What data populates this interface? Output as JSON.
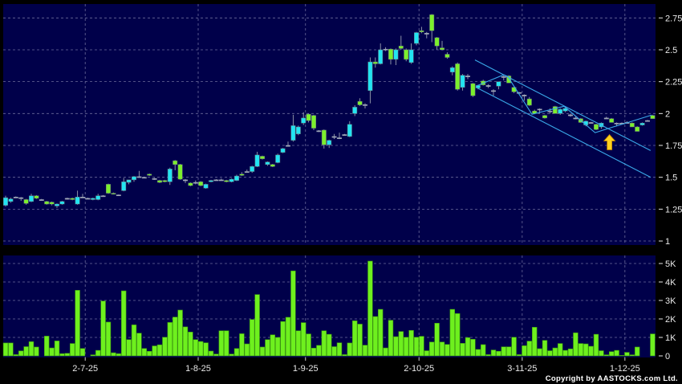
{
  "chart_data": [
    {
      "type": "candlestick",
      "panel": "price",
      "ylim": [
        1,
        2.78
      ],
      "y_ticks": [
        "1",
        "1.25",
        "1.5",
        "1.75",
        "2",
        "2.25",
        "2.5",
        "2.75"
      ],
      "y_tick_values": [
        1,
        1.25,
        1.5,
        1.75,
        2,
        2.25,
        2.5,
        2.75
      ],
      "grid": true,
      "colors": {
        "up": "#22e4f2",
        "down": "#7cf02c",
        "flat": "#a0a8b8",
        "background": "#00004a",
        "trendline": "#3aa8e8",
        "arrow": "#ffd21e"
      },
      "candles_ohlc": [
        [
          1.28,
          1.355,
          1.27,
          1.34
        ],
        [
          1.31,
          1.34,
          1.3,
          1.33
        ],
        [
          1.345,
          1.35,
          1.34,
          1.345
        ],
        [
          1.34,
          1.345,
          1.315,
          1.34
        ],
        [
          1.325,
          1.33,
          1.285,
          1.295
        ],
        [
          1.31,
          1.37,
          1.305,
          1.355
        ],
        [
          1.355,
          1.36,
          1.33,
          1.335
        ],
        [
          1.325,
          1.33,
          1.32,
          1.325
        ],
        [
          1.31,
          1.315,
          1.285,
          1.29
        ],
        [
          1.305,
          1.31,
          1.28,
          1.29
        ],
        [
          1.275,
          1.295,
          1.26,
          1.29
        ],
        [
          1.29,
          1.315,
          1.285,
          1.31
        ],
        [
          1.335,
          1.34,
          1.325,
          1.335
        ],
        [
          1.335,
          1.34,
          1.32,
          1.325
        ],
        [
          1.29,
          1.395,
          1.285,
          1.345
        ],
        [
          1.345,
          1.37,
          1.34,
          1.345
        ],
        [
          1.335,
          1.34,
          1.33,
          1.335
        ],
        [
          1.325,
          1.34,
          1.32,
          1.335
        ],
        [
          1.325,
          1.37,
          1.32,
          1.355
        ],
        [
          1.355,
          1.36,
          1.35,
          1.355
        ],
        [
          1.445,
          1.45,
          1.37,
          1.375
        ],
        [
          1.375,
          1.38,
          1.365,
          1.368
        ],
        [
          1.362,
          1.365,
          1.36,
          1.362
        ],
        [
          1.395,
          1.495,
          1.39,
          1.465
        ],
        [
          1.46,
          1.48,
          1.445,
          1.48
        ],
        [
          1.48,
          1.51,
          1.465,
          1.505
        ],
        [
          1.505,
          1.55,
          1.5,
          1.505
        ],
        [
          1.5,
          1.505,
          1.495,
          1.5
        ],
        [
          1.525,
          1.53,
          1.51,
          1.515
        ],
        [
          1.49,
          1.495,
          1.48,
          1.49
        ],
        [
          1.475,
          1.48,
          1.455,
          1.46
        ],
        [
          1.475,
          1.48,
          1.46,
          1.465
        ],
        [
          1.465,
          1.575,
          1.44,
          1.565
        ],
        [
          1.63,
          1.635,
          1.555,
          1.6
        ],
        [
          1.6,
          1.605,
          1.48,
          1.485
        ],
        [
          1.48,
          1.485,
          1.455,
          1.48
        ],
        [
          1.455,
          1.46,
          1.43,
          1.435
        ],
        [
          1.46,
          1.475,
          1.445,
          1.46
        ],
        [
          1.465,
          1.47,
          1.43,
          1.435
        ],
        [
          1.415,
          1.45,
          1.41,
          1.445
        ],
        [
          1.465,
          1.48,
          1.46,
          1.475
        ],
        [
          1.48,
          1.485,
          1.475,
          1.48
        ],
        [
          1.48,
          1.49,
          1.475,
          1.48
        ],
        [
          1.475,
          1.48,
          1.46,
          1.465
        ],
        [
          1.465,
          1.49,
          1.46,
          1.485
        ],
        [
          1.475,
          1.52,
          1.47,
          1.51
        ],
        [
          1.525,
          1.54,
          1.51,
          1.515
        ],
        [
          1.545,
          1.56,
          1.54,
          1.545
        ],
        [
          1.545,
          1.59,
          1.535,
          1.585
        ],
        [
          1.585,
          1.7,
          1.58,
          1.675
        ],
        [
          1.665,
          1.67,
          1.64,
          1.645
        ],
        [
          1.6,
          1.625,
          1.59,
          1.62
        ],
        [
          1.6,
          1.605,
          1.58,
          1.585
        ],
        [
          1.615,
          1.685,
          1.61,
          1.675
        ],
        [
          1.695,
          1.73,
          1.69,
          1.725
        ],
        [
          1.75,
          1.78,
          1.74,
          1.75
        ],
        [
          1.79,
          1.99,
          1.78,
          1.905
        ],
        [
          1.84,
          1.905,
          1.83,
          1.895
        ],
        [
          1.925,
          2.01,
          1.91,
          1.965
        ],
        [
          1.995,
          2.0,
          1.93,
          1.945
        ],
        [
          1.985,
          1.99,
          1.87,
          1.885
        ],
        [
          1.865,
          1.87,
          1.855,
          1.865
        ],
        [
          1.87,
          1.875,
          1.725,
          1.755
        ],
        [
          1.755,
          1.795,
          1.73,
          1.79
        ],
        [
          1.82,
          1.84,
          1.8,
          1.82
        ],
        [
          1.81,
          1.85,
          1.8,
          1.81
        ],
        [
          1.835,
          1.84,
          1.83,
          1.835
        ],
        [
          1.82,
          1.94,
          1.815,
          1.915
        ],
        [
          2.0,
          2.065,
          1.98,
          2.05
        ],
        [
          2.095,
          2.12,
          2.06,
          2.068
        ],
        [
          2.07,
          2.08,
          2.04,
          2.07
        ],
        [
          2.18,
          2.44,
          2.08,
          2.405
        ],
        [
          2.405,
          2.44,
          2.36,
          2.39
        ],
        [
          2.39,
          2.55,
          2.385,
          2.5
        ],
        [
          2.505,
          2.52,
          2.49,
          2.505
        ],
        [
          2.505,
          2.51,
          2.385,
          2.425
        ],
        [
          2.425,
          2.51,
          2.38,
          2.5
        ],
        [
          2.53,
          2.61,
          2.5,
          2.51
        ],
        [
          2.5,
          2.51,
          2.41,
          2.425
        ],
        [
          2.4,
          2.55,
          2.39,
          2.5
        ],
        [
          2.55,
          2.64,
          2.535,
          2.635
        ],
        [
          2.65,
          2.68,
          2.63,
          2.64
        ],
        [
          2.63,
          2.64,
          2.59,
          2.63
        ],
        [
          2.775,
          2.78,
          2.56,
          2.65
        ],
        [
          2.595,
          2.6,
          2.5,
          2.53
        ],
        [
          2.515,
          2.57,
          2.495,
          2.5
        ],
        [
          2.465,
          2.48,
          2.43,
          2.44
        ],
        [
          2.325,
          2.37,
          2.3,
          2.36
        ],
        [
          2.39,
          2.4,
          2.18,
          2.19
        ],
        [
          2.205,
          2.31,
          2.18,
          2.3
        ],
        [
          2.295,
          2.31,
          2.27,
          2.295
        ],
        [
          2.235,
          2.24,
          2.13,
          2.14
        ],
        [
          2.2,
          2.225,
          2.19,
          2.22
        ],
        [
          2.255,
          2.265,
          2.22,
          2.225
        ],
        [
          2.22,
          2.23,
          2.2,
          2.22
        ],
        [
          2.18,
          2.19,
          2.14,
          2.18
        ],
        [
          2.215,
          2.25,
          2.19,
          2.25
        ],
        [
          2.29,
          2.3,
          2.26,
          2.29
        ],
        [
          2.295,
          2.3,
          2.24,
          2.24
        ],
        [
          2.205,
          2.21,
          2.16,
          2.17
        ],
        [
          2.165,
          2.17,
          2.16,
          2.165
        ],
        [
          2.145,
          2.15,
          2.1,
          2.145
        ],
        [
          2.115,
          2.13,
          2.06,
          2.065
        ],
        [
          2.02,
          2.03,
          1.995,
          2.0
        ],
        [
          2.035,
          2.04,
          2.0,
          2.035
        ],
        [
          1.985,
          1.99,
          1.96,
          1.965
        ],
        [
          2.02,
          2.04,
          2.0,
          2.02
        ],
        [
          2.055,
          2.06,
          2.0,
          2.0
        ],
        [
          2.0,
          2.04,
          1.99,
          2.033
        ],
        [
          2.02,
          2.045,
          2.01,
          2.04
        ],
        [
          1.99,
          2.0,
          1.975,
          1.99
        ],
        [
          1.965,
          1.975,
          1.955,
          1.965
        ],
        [
          1.96,
          1.965,
          1.93,
          1.93
        ],
        [
          1.91,
          1.945,
          1.9,
          1.94
        ],
        [
          1.93,
          1.935,
          1.925,
          1.93
        ],
        [
          1.915,
          1.92,
          1.87,
          1.875
        ],
        [
          1.895,
          1.93,
          1.88,
          1.925
        ],
        [
          1.965,
          1.975,
          1.96,
          1.965
        ],
        [
          1.96,
          1.965,
          1.93,
          1.93
        ],
        [
          1.925,
          1.93,
          1.9,
          1.925
        ],
        [
          1.925,
          1.93,
          1.92,
          1.925
        ],
        [
          1.93,
          1.94,
          1.925,
          1.93
        ],
        [
          1.925,
          1.93,
          1.895,
          1.895
        ],
        [
          1.895,
          1.9,
          1.86,
          1.86
        ],
        [
          1.91,
          1.93,
          1.905,
          1.925
        ],
        [
          1.945,
          1.95,
          1.94,
          1.945
        ],
        [
          1.985,
          1.99,
          1.96,
          1.96
        ]
      ],
      "annotations": {
        "channel_upper": [
          [
            91.4,
            2.42
          ],
          [
            125.6,
            1.71
          ]
        ],
        "channel_lower": [
          [
            91.9,
            2.2
          ],
          [
            125.6,
            1.5
          ]
        ],
        "zigzag": [
          [
            91.6,
            2.215
          ],
          [
            97,
            2.304
          ],
          [
            97.8,
            2.29
          ],
          [
            102.5,
            1.994
          ],
          [
            108.75,
            2.057
          ],
          [
            114.8,
            1.85
          ],
          [
            117.7,
            1.887
          ],
          [
            120.8,
            1.925
          ],
          [
            125.8,
            1.988
          ]
        ],
        "up_arrow": {
          "bar": 117.6,
          "price": 1.835
        }
      }
    },
    {
      "type": "bar",
      "panel": "volume",
      "ylim": [
        0,
        5.3
      ],
      "y_ticks": [
        "0",
        "1K",
        "2K",
        "3K",
        "4K",
        "5K"
      ],
      "y_tick_values": [
        0,
        1,
        2,
        3,
        4,
        5
      ],
      "unit": "K",
      "color": "#6ef01e",
      "values": [
        0.7,
        0.7,
        0.07,
        0.27,
        0.5,
        0.77,
        0.48,
        0,
        1.07,
        0.43,
        0.81,
        0.12,
        0.14,
        0.67,
        3.55,
        0.4,
        0,
        0.06,
        0.3,
        2.97,
        1.83,
        0.17,
        0.12,
        3.52,
        0.88,
        1.68,
        1.23,
        0.4,
        0.25,
        0.54,
        0.6,
        1.01,
        1.81,
        2.1,
        2.48,
        1.57,
        1.29,
        0.88,
        0.78,
        0.71,
        0.26,
        0.1,
        1.36,
        1.36,
        0.1,
        0.4,
        1.2,
        0.65,
        1.97,
        3.32,
        0.48,
        0.88,
        1.14,
        1.0,
        1.86,
        2.09,
        4.6,
        1.36,
        1.8,
        1.19,
        0.42,
        0.57,
        1.36,
        1.17,
        0.5,
        0.71,
        0.07,
        0.7,
        1.9,
        1.72,
        0.58,
        5.13,
        2.13,
        2.52,
        0.43,
        1.93,
        1.04,
        1.32,
        1.01,
        1.38,
        1.01,
        1.06,
        0.28,
        0.75,
        1.77,
        0.75,
        0.62,
        2.52,
        2.29,
        0.68,
        0.99,
        0.9,
        0.35,
        0.61,
        0.07,
        0.32,
        0.25,
        0.49,
        0.49,
        1.01,
        0.07,
        0.55,
        0.8,
        1.55,
        0.39,
        0.84,
        0.28,
        0.43,
        0.67,
        0.3,
        0.38,
        1.25,
        0.67,
        0.65,
        0.52,
        1.17,
        0.28,
        0.06,
        0.23,
        0.3,
        0.03,
        0.19,
        0.06,
        0.48,
        0,
        0,
        1.19
      ]
    }
  ],
  "x_axis": {
    "labels": [
      "2-7-25",
      "1-8-25",
      "1-9-25",
      "2-10-25",
      "3-11-25",
      "1-12-25"
    ],
    "label_bars": [
      15.5,
      37.5,
      58.4,
      80.5,
      100.6,
      120.6
    ]
  },
  "footer": {
    "copyright": "Copyright by AASTOCKS.com Ltd."
  }
}
